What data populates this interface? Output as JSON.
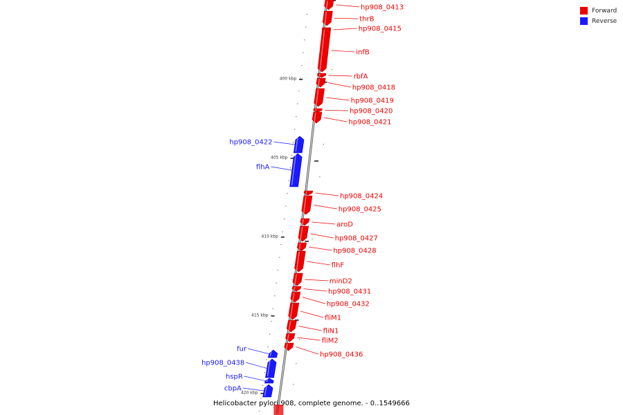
{
  "colors": {
    "forward": "#ee0000",
    "reverse": "#1a1aff",
    "backbone": "#999999"
  },
  "legend": [
    {
      "label": "Forward",
      "color": "#ee0000"
    },
    {
      "label": "Reverse",
      "color": "#1a1aff"
    }
  ],
  "caption": "Helicobacter pylori 908, complete genome. - 0..1549666",
  "ticks": [
    {
      "label": "400 kbp"
    },
    {
      "label": "405 kbp"
    },
    {
      "label": "410 kbp"
    },
    {
      "label": "415 kbp"
    },
    {
      "label": "420 kbp"
    }
  ],
  "genes": [
    {
      "name": "hp908_0413",
      "strand": "forward"
    },
    {
      "name": "thrB",
      "strand": "forward"
    },
    {
      "name": "hp908_0415",
      "strand": "forward"
    },
    {
      "name": "infB",
      "strand": "forward"
    },
    {
      "name": "rbfA",
      "strand": "forward"
    },
    {
      "name": "hp908_0418",
      "strand": "forward"
    },
    {
      "name": "hp908_0419",
      "strand": "forward"
    },
    {
      "name": "hp908_0420",
      "strand": "forward"
    },
    {
      "name": "hp908_0421",
      "strand": "forward"
    },
    {
      "name": "hp908_0422",
      "strand": "reverse"
    },
    {
      "name": "flhA",
      "strand": "reverse"
    },
    {
      "name": "hp908_0424",
      "strand": "forward"
    },
    {
      "name": "hp908_0425",
      "strand": "forward"
    },
    {
      "name": "aroD",
      "strand": "forward"
    },
    {
      "name": "hp908_0427",
      "strand": "forward"
    },
    {
      "name": "hp908_0428",
      "strand": "forward"
    },
    {
      "name": "flhF",
      "strand": "forward"
    },
    {
      "name": "minD2",
      "strand": "forward"
    },
    {
      "name": "hp908_0431",
      "strand": "forward"
    },
    {
      "name": "hp908_0432",
      "strand": "forward"
    },
    {
      "name": "fliM1",
      "strand": "forward"
    },
    {
      "name": "fliN1",
      "strand": "forward"
    },
    {
      "name": "fliM2",
      "strand": "forward"
    },
    {
      "name": "hp908_0436",
      "strand": "forward"
    },
    {
      "name": "fur",
      "strand": "reverse"
    },
    {
      "name": "hp908_0438",
      "strand": "reverse"
    },
    {
      "name": "hspR",
      "strand": "reverse"
    },
    {
      "name": "cbpA",
      "strand": "reverse"
    }
  ]
}
